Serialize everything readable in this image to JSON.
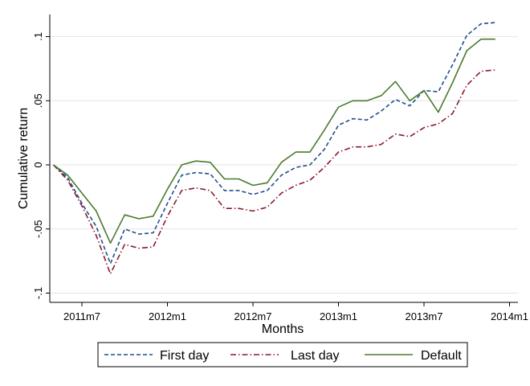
{
  "chart_data": {
    "type": "line",
    "xlabel": "Months",
    "ylabel": "Cumulative return",
    "xlim": [
      "2011-04",
      "2013-12"
    ],
    "ylim": [
      -0.1,
      0.1
    ],
    "grid": true,
    "legend_position": "bottom",
    "x_ticks": [
      {
        "value": "2011-07",
        "label": "2011m7"
      },
      {
        "value": "2012-01",
        "label": "2012m1"
      },
      {
        "value": "2012-07",
        "label": "2012m7"
      },
      {
        "value": "2013-01",
        "label": "2013m1"
      },
      {
        "value": "2013-07",
        "label": "2013m7"
      },
      {
        "value": "2014-01",
        "label": "2014m1"
      }
    ],
    "y_ticks": [
      {
        "value": -0.1,
        "label": "-.1"
      },
      {
        "value": -0.05,
        "label": "-.05"
      },
      {
        "value": 0,
        "label": "0"
      },
      {
        "value": 0.05,
        "label": ".05"
      },
      {
        "value": 0.1,
        "label": ".1"
      }
    ],
    "x": [
      "2011-05",
      "2011-06",
      "2011-07",
      "2011-08",
      "2011-09",
      "2011-10",
      "2011-11",
      "2011-12",
      "2012-01",
      "2012-02",
      "2012-03",
      "2012-04",
      "2012-05",
      "2012-06",
      "2012-07",
      "2012-08",
      "2012-09",
      "2012-10",
      "2012-11",
      "2012-12",
      "2013-01",
      "2013-02",
      "2013-03",
      "2013-04",
      "2013-05",
      "2013-06",
      "2013-07",
      "2013-08",
      "2013-09",
      "2013-10",
      "2013-11",
      "2013-12"
    ],
    "series": [
      {
        "name": "First day",
        "color": "#1f4e8c",
        "dash": "dashed",
        "values": [
          0.0,
          -0.01,
          -0.03,
          -0.048,
          -0.077,
          -0.05,
          -0.054,
          -0.053,
          -0.03,
          -0.008,
          -0.006,
          -0.007,
          -0.02,
          -0.02,
          -0.023,
          -0.02,
          -0.008,
          -0.002,
          0.0,
          0.012,
          0.031,
          0.036,
          0.035,
          0.042,
          0.051,
          0.046,
          0.058,
          0.057,
          0.078,
          0.101,
          0.11,
          0.111
        ]
      },
      {
        "name": "Last day",
        "color": "#8b1a2e",
        "dash": "dashdot",
        "values": [
          0.0,
          -0.012,
          -0.032,
          -0.055,
          -0.085,
          -0.062,
          -0.065,
          -0.064,
          -0.04,
          -0.02,
          -0.018,
          -0.02,
          -0.034,
          -0.034,
          -0.036,
          -0.033,
          -0.022,
          -0.016,
          -0.012,
          -0.002,
          0.01,
          0.014,
          0.014,
          0.016,
          0.024,
          0.022,
          0.029,
          0.032,
          0.04,
          0.062,
          0.073,
          0.074
        ]
      },
      {
        "name": "Default",
        "color": "#4a7a2e",
        "dash": "solid",
        "values": [
          0.0,
          -0.008,
          -0.022,
          -0.036,
          -0.061,
          -0.039,
          -0.042,
          -0.04,
          -0.019,
          0.0,
          0.003,
          0.002,
          -0.011,
          -0.011,
          -0.016,
          -0.014,
          0.002,
          0.01,
          0.01,
          0.027,
          0.045,
          0.05,
          0.05,
          0.054,
          0.065,
          0.05,
          0.058,
          0.041,
          0.064,
          0.089,
          0.098,
          0.098
        ]
      }
    ]
  }
}
